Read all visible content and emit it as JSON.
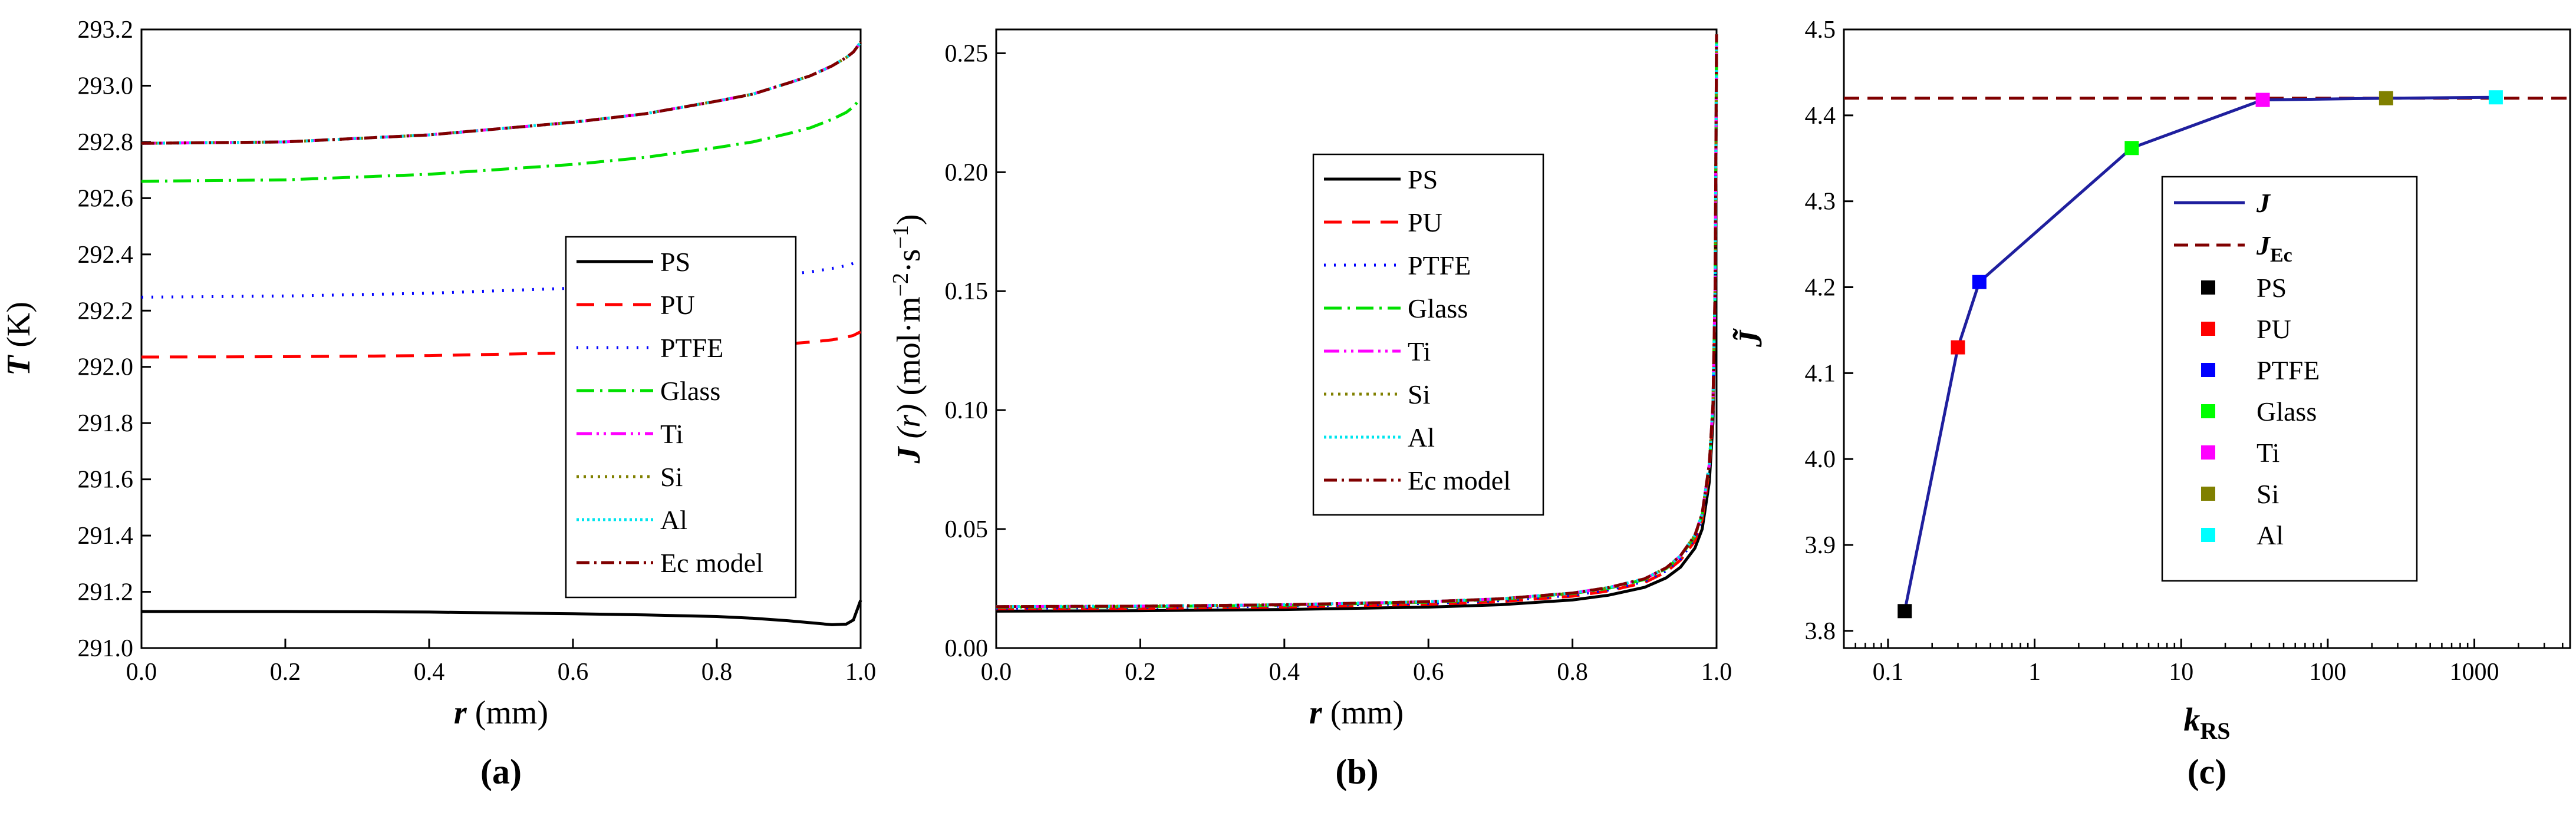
{
  "chart_data": [
    {
      "type": "line",
      "panel_label": "(a)",
      "xlabel_var": "r",
      "xlabel_unit": " (mm)",
      "ylabel_var": "T",
      "ylabel_unit": " (K)",
      "xlim": [
        0.0,
        1.0
      ],
      "ylim": [
        291.0,
        293.2
      ],
      "xticks": [
        "0.0",
        "0.2",
        "0.4",
        "0.6",
        "0.8",
        "1.0"
      ],
      "yticks": [
        "291.0",
        "291.2",
        "291.4",
        "291.6",
        "291.8",
        "292.0",
        "292.2",
        "292.4",
        "292.6",
        "292.8",
        "293.0",
        "293.2"
      ],
      "series": [
        {
          "name": "PS",
          "color": "#000000",
          "dash": "",
          "x": [
            0,
            0.2,
            0.4,
            0.6,
            0.7,
            0.8,
            0.85,
            0.9,
            0.93,
            0.96,
            0.98,
            0.99,
            1.0
          ],
          "values": [
            291.13,
            291.13,
            291.128,
            291.122,
            291.118,
            291.112,
            291.106,
            291.097,
            291.09,
            291.083,
            291.085,
            291.1,
            291.17
          ]
        },
        {
          "name": "PU",
          "color": "#ff0000",
          "dash": "30 18",
          "x": [
            0,
            0.2,
            0.4,
            0.6,
            0.7,
            0.8,
            0.85,
            0.9,
            0.93,
            0.96,
            0.98,
            0.99,
            1.0
          ],
          "values": [
            292.035,
            292.036,
            292.04,
            292.05,
            292.058,
            292.068,
            292.074,
            292.082,
            292.088,
            292.096,
            292.105,
            292.112,
            292.125
          ]
        },
        {
          "name": "PTFE",
          "color": "#0000ff",
          "dash": "3 14",
          "x": [
            0,
            0.2,
            0.4,
            0.6,
            0.7,
            0.8,
            0.85,
            0.9,
            0.93,
            0.96,
            0.98,
            0.99,
            1.0
          ],
          "values": [
            292.248,
            292.252,
            292.262,
            292.28,
            292.292,
            292.308,
            292.318,
            292.33,
            292.338,
            292.35,
            292.36,
            292.368,
            292.38
          ]
        },
        {
          "name": "Glass",
          "color": "#00e000",
          "dash": "30 10 4 10",
          "x": [
            0,
            0.2,
            0.4,
            0.6,
            0.7,
            0.8,
            0.85,
            0.9,
            0.93,
            0.96,
            0.98,
            0.99,
            1.0
          ],
          "values": [
            292.66,
            292.665,
            292.685,
            292.72,
            292.745,
            292.78,
            292.8,
            292.83,
            292.85,
            292.88,
            292.905,
            292.925,
            292.955
          ]
        },
        {
          "name": "Ti",
          "color": "#ff00ff",
          "dash": "26 8 4 8 4 8",
          "x": [
            0,
            0.2,
            0.4,
            0.6,
            0.7,
            0.8,
            0.85,
            0.9,
            0.93,
            0.96,
            0.98,
            0.99,
            1.0
          ],
          "values": [
            292.795,
            292.8,
            292.825,
            292.87,
            292.9,
            292.945,
            292.97,
            293.01,
            293.035,
            293.07,
            293.1,
            293.12,
            293.155
          ]
        },
        {
          "name": "Si",
          "color": "#808000",
          "dash": "4 8",
          "x": [
            0,
            0.2,
            0.4,
            0.6,
            0.7,
            0.8,
            0.85,
            0.9,
            0.93,
            0.96,
            0.98,
            0.99,
            1.0
          ],
          "values": [
            292.795,
            292.8,
            292.825,
            292.87,
            292.9,
            292.945,
            292.97,
            293.01,
            293.035,
            293.07,
            293.1,
            293.12,
            293.155
          ]
        },
        {
          "name": "Al",
          "color": "#00e5ee",
          "dash": "4 5",
          "x": [
            0,
            0.2,
            0.4,
            0.6,
            0.7,
            0.8,
            0.85,
            0.9,
            0.93,
            0.96,
            0.98,
            0.99,
            1.0
          ],
          "values": [
            292.795,
            292.8,
            292.825,
            292.87,
            292.9,
            292.945,
            292.97,
            293.01,
            293.035,
            293.07,
            293.1,
            293.12,
            293.155
          ]
        },
        {
          "name": "Ec model",
          "color": "#800000",
          "dash": "22 8 4 8",
          "x": [
            0,
            0.2,
            0.4,
            0.6,
            0.7,
            0.8,
            0.85,
            0.9,
            0.93,
            0.96,
            0.98,
            0.99,
            1.0
          ],
          "values": [
            292.795,
            292.8,
            292.825,
            292.87,
            292.9,
            292.945,
            292.97,
            293.01,
            293.035,
            293.07,
            293.1,
            293.12,
            293.155
          ]
        }
      ]
    },
    {
      "type": "line",
      "panel_label": "(b)",
      "xlabel_var": "r",
      "xlabel_unit": " (mm)",
      "ylabel_var": "J",
      "ylabel_mid": " (r) ",
      "ylabel_unit": "(mol·m",
      "ylabel_sup1": "−2",
      "ylabel_mid2": "·s",
      "ylabel_sup2": "−1",
      "ylabel_end": ")",
      "xlim": [
        0.0,
        1.0
      ],
      "ylim": [
        0.0,
        0.26
      ],
      "xticks": [
        "0.0",
        "0.2",
        "0.4",
        "0.6",
        "0.8",
        "1.0"
      ],
      "yticks": [
        "0.00",
        "0.05",
        "0.10",
        "0.15",
        "0.20",
        "0.25"
      ],
      "series": [
        {
          "name": "PS",
          "color": "#000000",
          "dash": "",
          "x": [
            0,
            0.2,
            0.4,
            0.6,
            0.7,
            0.8,
            0.85,
            0.9,
            0.93,
            0.95,
            0.97,
            0.98,
            0.99,
            0.995,
            0.998,
            1.0
          ],
          "values": [
            0.0155,
            0.0157,
            0.0162,
            0.0172,
            0.0182,
            0.0202,
            0.0222,
            0.0255,
            0.0295,
            0.034,
            0.042,
            0.05,
            0.07,
            0.095,
            0.14,
            0.25
          ]
        },
        {
          "name": "PU",
          "color": "#ff0000",
          "dash": "30 18",
          "x": [
            0,
            0.2,
            0.4,
            0.6,
            0.7,
            0.8,
            0.85,
            0.9,
            0.93,
            0.95,
            0.97,
            0.98,
            0.99,
            0.995,
            0.998,
            1.0
          ],
          "values": [
            0.0165,
            0.0167,
            0.0172,
            0.0184,
            0.0195,
            0.0218,
            0.024,
            0.0275,
            0.032,
            0.037,
            0.045,
            0.054,
            0.075,
            0.1,
            0.15,
            0.255
          ]
        },
        {
          "name": "PTFE",
          "color": "#0000ff",
          "dash": "3 14",
          "x": [
            0,
            0.2,
            0.4,
            0.6,
            0.7,
            0.8,
            0.85,
            0.9,
            0.93,
            0.95,
            0.97,
            0.98,
            0.99,
            0.995,
            0.998,
            1.0
          ],
          "values": [
            0.0168,
            0.017,
            0.0176,
            0.0188,
            0.0199,
            0.0222,
            0.0244,
            0.028,
            0.0325,
            0.0375,
            0.046,
            0.055,
            0.076,
            0.101,
            0.151,
            0.256
          ]
        },
        {
          "name": "Glass",
          "color": "#00e000",
          "dash": "30 10 4 10",
          "x": [
            0,
            0.2,
            0.4,
            0.6,
            0.7,
            0.8,
            0.85,
            0.9,
            0.93,
            0.95,
            0.97,
            0.98,
            0.99,
            0.995,
            0.998,
            1.0
          ],
          "values": [
            0.0172,
            0.0174,
            0.018,
            0.0193,
            0.0205,
            0.0229,
            0.0251,
            0.0288,
            0.0334,
            0.0385,
            0.047,
            0.056,
            0.077,
            0.102,
            0.152,
            0.257
          ]
        },
        {
          "name": "Ti",
          "color": "#ff00ff",
          "dash": "26 8 4 8 4 8",
          "x": [
            0,
            0.2,
            0.4,
            0.6,
            0.7,
            0.8,
            0.85,
            0.9,
            0.93,
            0.95,
            0.97,
            0.98,
            0.99,
            0.995,
            0.998,
            1.0
          ],
          "values": [
            0.0174,
            0.0176,
            0.0182,
            0.0195,
            0.0207,
            0.0231,
            0.0254,
            0.0291,
            0.0337,
            0.0388,
            0.0474,
            0.0565,
            0.0775,
            0.1025,
            0.1525,
            0.258
          ]
        },
        {
          "name": "Si",
          "color": "#808000",
          "dash": "4 8",
          "x": [
            0,
            0.2,
            0.4,
            0.6,
            0.7,
            0.8,
            0.85,
            0.9,
            0.93,
            0.95,
            0.97,
            0.98,
            0.99,
            0.995,
            0.998,
            1.0
          ],
          "values": [
            0.0174,
            0.0176,
            0.0182,
            0.0195,
            0.0207,
            0.0231,
            0.0254,
            0.0291,
            0.0337,
            0.0388,
            0.0474,
            0.0565,
            0.0775,
            0.1025,
            0.1525,
            0.258
          ]
        },
        {
          "name": "Al",
          "color": "#00e5ee",
          "dash": "4 5",
          "x": [
            0,
            0.2,
            0.4,
            0.6,
            0.7,
            0.8,
            0.85,
            0.9,
            0.93,
            0.95,
            0.97,
            0.98,
            0.99,
            0.995,
            0.998,
            1.0
          ],
          "values": [
            0.0174,
            0.0176,
            0.0182,
            0.0195,
            0.0207,
            0.0231,
            0.0254,
            0.0291,
            0.0337,
            0.0388,
            0.0474,
            0.0565,
            0.0775,
            0.1025,
            0.1525,
            0.258
          ]
        },
        {
          "name": "Ec model",
          "color": "#800000",
          "dash": "22 8 4 8",
          "x": [
            0,
            0.2,
            0.4,
            0.6,
            0.7,
            0.8,
            0.85,
            0.9,
            0.93,
            0.95,
            0.97,
            0.98,
            0.99,
            0.995,
            0.998,
            1.0
          ],
          "values": [
            0.0174,
            0.0176,
            0.0182,
            0.0195,
            0.0207,
            0.0231,
            0.0254,
            0.0291,
            0.0337,
            0.0388,
            0.0474,
            0.0565,
            0.0775,
            0.1025,
            0.1525,
            0.258
          ]
        }
      ]
    },
    {
      "type": "line",
      "panel_label": "(c)",
      "xscale": "log",
      "xlabel_var": "k",
      "xlabel_sub": "RS",
      "ylabel_var": "J̃",
      "xlim": [
        0.05,
        4500
      ],
      "ylim": [
        3.78,
        4.5
      ],
      "xticks": [
        "0.1",
        "1",
        "10",
        "100",
        "1000"
      ],
      "xtick_values": [
        0.1,
        1,
        10,
        100,
        1000
      ],
      "yticks": [
        "3.8",
        "3.9",
        "4.0",
        "4.1",
        "4.2",
        "4.3",
        "4.4",
        "4.5"
      ],
      "line": {
        "name": "J",
        "color": "#1f1f9e"
      },
      "reference": {
        "name": "J",
        "sub": "Ec",
        "value": 4.42,
        "color": "#800000"
      },
      "points": [
        {
          "name": "PS",
          "x": 0.13,
          "y": 3.823,
          "color": "#000000"
        },
        {
          "name": "PU",
          "x": 0.3,
          "y": 4.13,
          "color": "#ff0000"
        },
        {
          "name": "PTFE",
          "x": 0.42,
          "y": 4.206,
          "color": "#0000ff"
        },
        {
          "name": "Glass",
          "x": 4.6,
          "y": 4.362,
          "color": "#00ff00"
        },
        {
          "name": "Ti",
          "x": 36,
          "y": 4.418,
          "color": "#ff00ff"
        },
        {
          "name": "Si",
          "x": 250,
          "y": 4.42,
          "color": "#808000"
        },
        {
          "name": "Al",
          "x": 1400,
          "y": 4.421,
          "color": "#00ffff"
        }
      ]
    }
  ]
}
